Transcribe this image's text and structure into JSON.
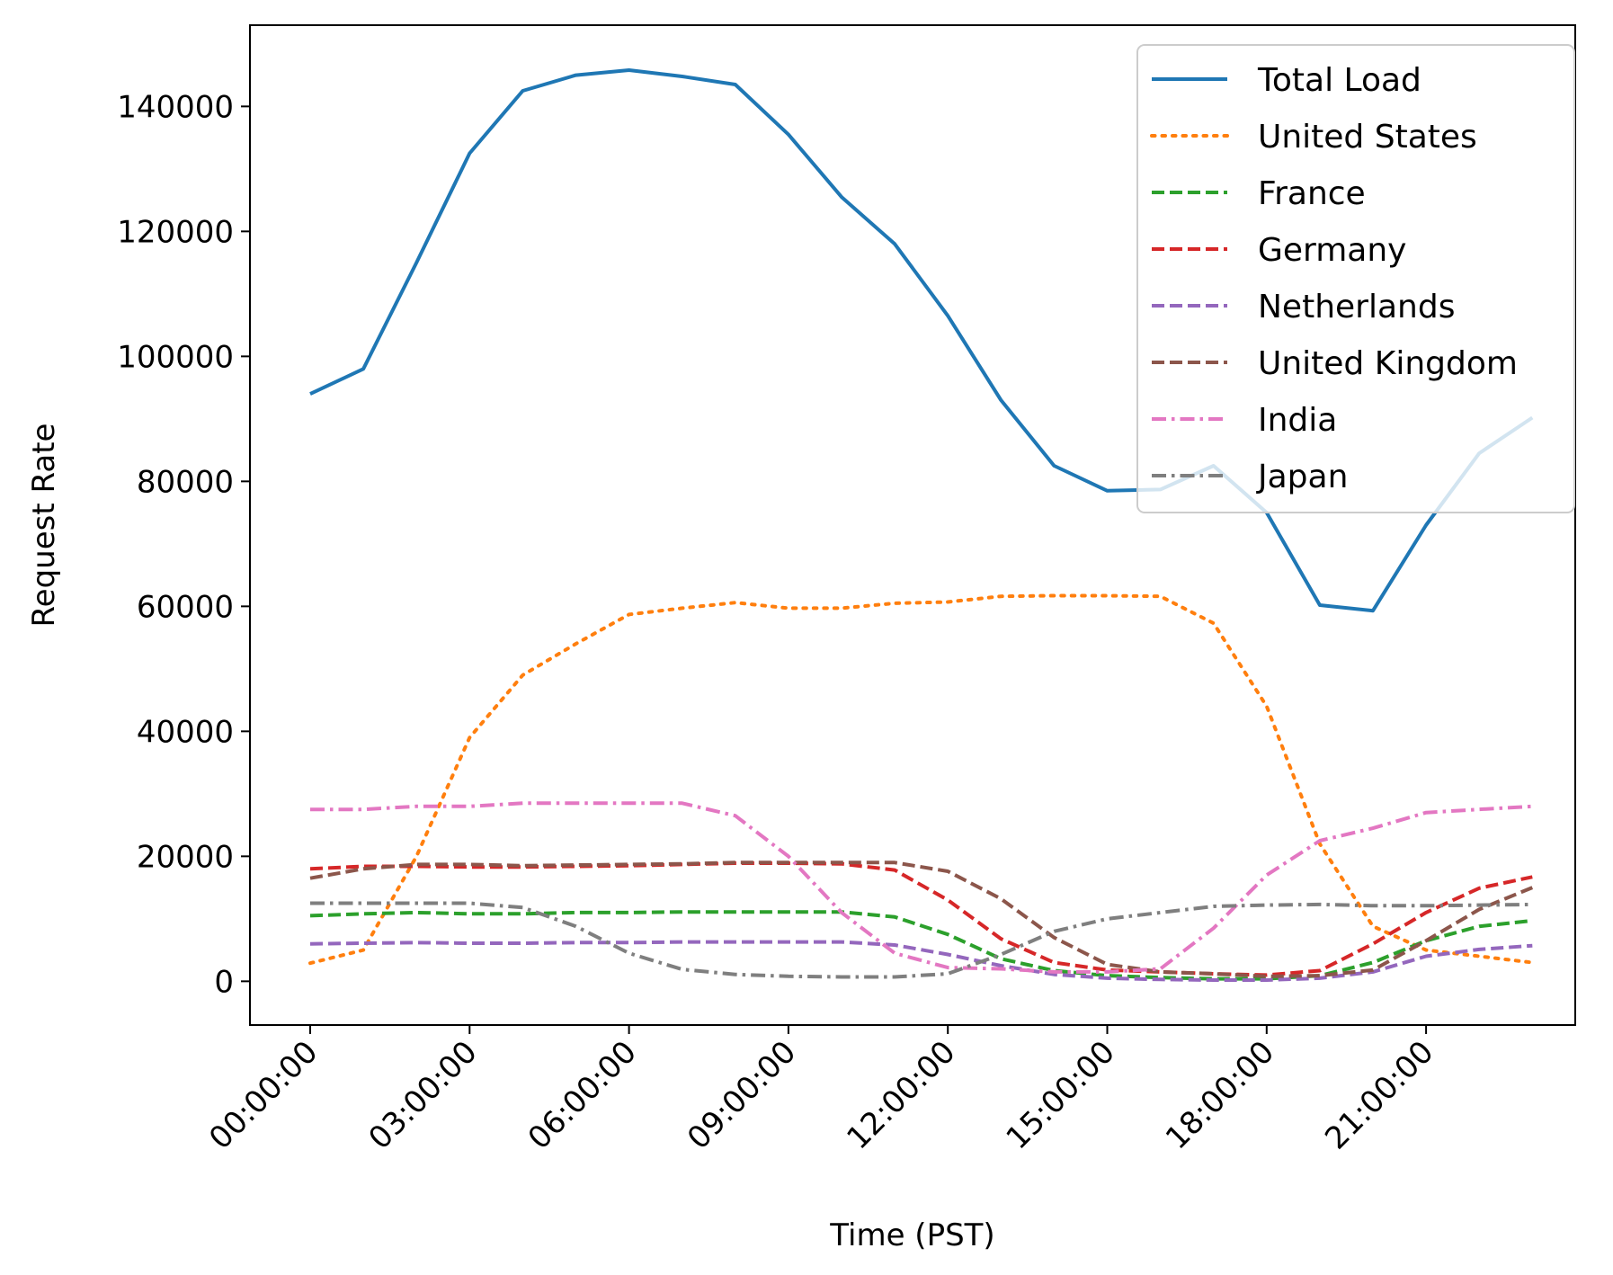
{
  "chart_data": {
    "type": "line",
    "title": "",
    "xlabel": "Time (PST)",
    "ylabel": "Request Rate",
    "x": [
      "00:00:00",
      "01:00:00",
      "02:00:00",
      "03:00:00",
      "04:00:00",
      "05:00:00",
      "06:00:00",
      "07:00:00",
      "08:00:00",
      "09:00:00",
      "10:00:00",
      "11:00:00",
      "12:00:00",
      "13:00:00",
      "14:00:00",
      "15:00:00",
      "16:00:00",
      "17:00:00",
      "18:00:00",
      "19:00:00",
      "20:00:00",
      "21:00:00",
      "22:00:00",
      "23:00:00"
    ],
    "x_ticks": [
      "00:00:00",
      "03:00:00",
      "06:00:00",
      "09:00:00",
      "12:00:00",
      "15:00:00",
      "18:00:00",
      "21:00:00"
    ],
    "y_ticks": [
      0,
      20000,
      40000,
      60000,
      80000,
      100000,
      120000,
      140000
    ],
    "ylim": [
      -7000,
      153000
    ],
    "grid": false,
    "legend": "top-right",
    "series": [
      {
        "name": "Total Load",
        "color": "#1f77b4",
        "dash": "solid",
        "values": [
          94000,
          98000,
          115000,
          132500,
          142500,
          145000,
          145800,
          144800,
          143500,
          135500,
          125500,
          118000,
          106500,
          93000,
          82500,
          78500,
          78700,
          82500,
          75000,
          60200,
          59300,
          73000,
          84500,
          90200
        ]
      },
      {
        "name": "United States",
        "color": "#ff7f0e",
        "dash": "dotted",
        "values": [
          2900,
          5000,
          20000,
          39000,
          49000,
          54000,
          58700,
          59700,
          60600,
          59700,
          59700,
          60500,
          60700,
          61600,
          61700,
          61700,
          61600,
          57300,
          44000,
          22000,
          8800,
          5000,
          4000,
          3000
        ]
      },
      {
        "name": "France",
        "color": "#2ca02c",
        "dash": "dashed",
        "values": [
          10500,
          10800,
          11000,
          10800,
          10800,
          11000,
          11000,
          11100,
          11100,
          11100,
          11100,
          10300,
          7500,
          3600,
          1700,
          900,
          600,
          400,
          400,
          900,
          3000,
          6500,
          8800,
          9700
        ]
      },
      {
        "name": "Germany",
        "color": "#d62728",
        "dash": "dashed",
        "values": [
          18000,
          18400,
          18400,
          18300,
          18300,
          18400,
          18500,
          18700,
          18900,
          18900,
          18800,
          17800,
          13000,
          6800,
          3000,
          1800,
          1500,
          1200,
          1000,
          1700,
          6000,
          11000,
          14900,
          16700
        ]
      },
      {
        "name": "Netherlands",
        "color": "#9467bd",
        "dash": "dashed",
        "values": [
          6000,
          6100,
          6200,
          6100,
          6100,
          6200,
          6200,
          6300,
          6300,
          6300,
          6300,
          5800,
          4300,
          2500,
          1100,
          500,
          300,
          200,
          200,
          500,
          1500,
          4000,
          5100,
          5700
        ]
      },
      {
        "name": "United Kingdom",
        "color": "#8c564b",
        "dash": "dashed",
        "values": [
          16500,
          18000,
          18700,
          18700,
          18500,
          18600,
          18700,
          18800,
          19000,
          19000,
          19000,
          19000,
          17600,
          13200,
          7000,
          2700,
          1500,
          1200,
          800,
          900,
          1800,
          6500,
          11500,
          15000
        ]
      },
      {
        "name": "India",
        "color": "#e377c2",
        "dash": "dashdot",
        "values": [
          27500,
          27500,
          28000,
          28000,
          28500,
          28500,
          28500,
          28500,
          26500,
          20000,
          11000,
          4500,
          2200,
          2000,
          1500,
          1500,
          2000,
          8500,
          17000,
          22500,
          24500,
          27000,
          27500,
          28000
        ]
      },
      {
        "name": "Japan",
        "color": "#7f7f7f",
        "dash": "dashdot",
        "values": [
          12500,
          12500,
          12500,
          12500,
          11800,
          8800,
          4500,
          1900,
          1100,
          800,
          700,
          700,
          1200,
          4300,
          8000,
          10000,
          11000,
          12000,
          12200,
          12300,
          12100,
          12100,
          12200,
          12300
        ]
      }
    ]
  }
}
